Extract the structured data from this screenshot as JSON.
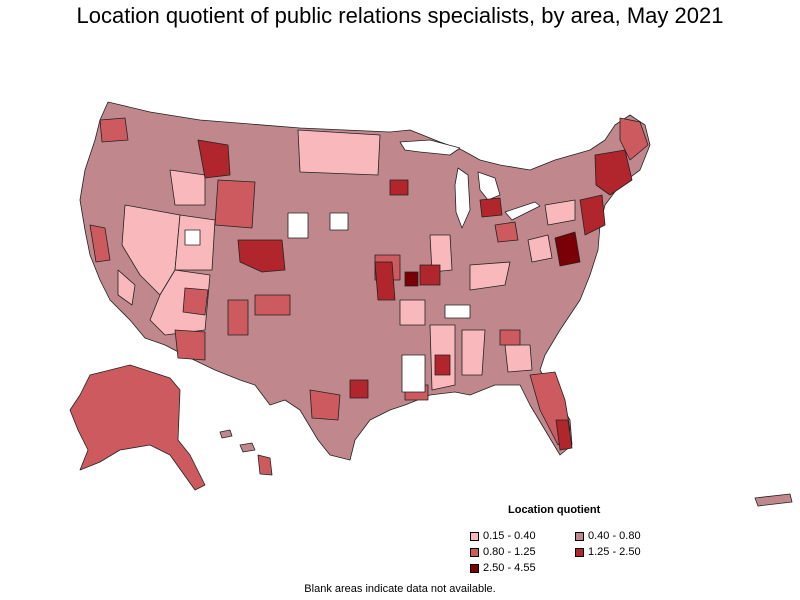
{
  "title": "Location quotient of public relations specialists, by area, May 2021",
  "legend": {
    "title": "Location quotient",
    "items": [
      {
        "label": "0.15 - 0.40",
        "color": "#f8b8bc"
      },
      {
        "label": "0.40 - 0.80",
        "color": "#c0888c"
      },
      {
        "label": "0.80 - 1.25",
        "color": "#cc5a5f"
      },
      {
        "label": "1.25 - 2.50",
        "color": "#b0262c"
      },
      {
        "label": "2.50 - 4.55",
        "color": "#7a0008"
      }
    ]
  },
  "footnote": "Blank areas indicate data not available.",
  "colors": {
    "base": "#c0888c",
    "light": "#f8b8bc",
    "mid": "#cc5a5f",
    "high": "#b0262c",
    "top": "#7a0008",
    "blank": "#ffffff"
  }
}
